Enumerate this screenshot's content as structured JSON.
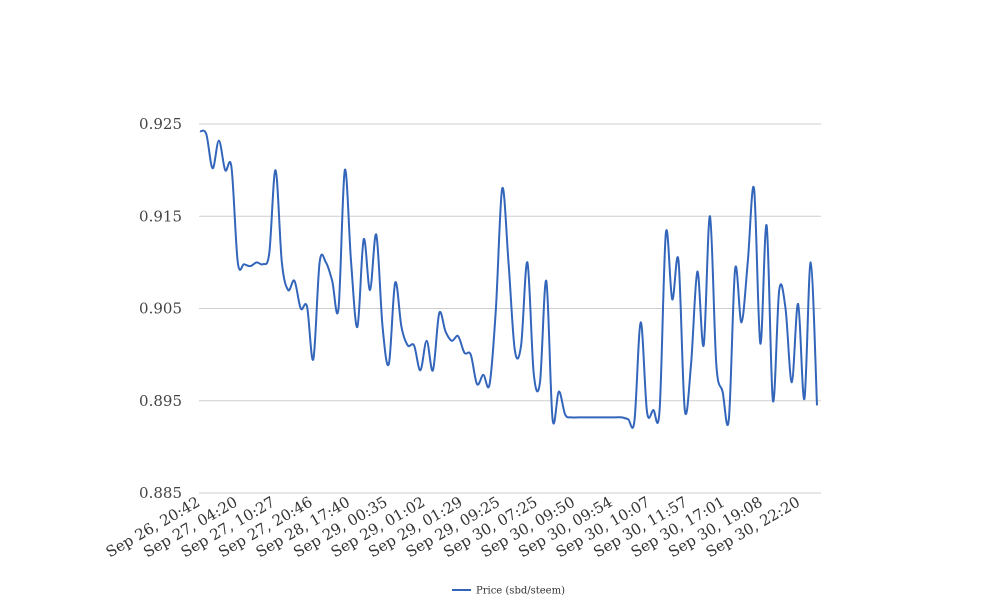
{
  "chart_data": {
    "type": "line",
    "title": "",
    "xlabel": "",
    "ylabel": "",
    "grid": true,
    "legend_position": "bottom",
    "ylim": [
      0.885,
      0.925
    ],
    "yticks": [
      "0.925",
      "0.915",
      "0.905",
      "0.895",
      "0.885"
    ],
    "xtick_labels": [
      "Sep 26, 20:42",
      "Sep 27, 04:20",
      "Sep 27, 10:27",
      "Sep 27, 20:46",
      "Sep 28, 17:40",
      "Sep 29, 00:35",
      "Sep 29, 01:02",
      "Sep 29, 01:29",
      "Sep 29, 09:25",
      "Sep 30, 07:25",
      "Sep 30, 09:50",
      "Sep 30, 09:54",
      "Sep 30, 10:07",
      "Sep 30, 11:57",
      "Sep 30, 17:01",
      "Sep 30, 19:08",
      "Sep 30, 22:20"
    ],
    "series": [
      {
        "name": "Price (sbd/steem)",
        "color": "#3366bb",
        "values": [
          0.9242,
          0.9239,
          0.9202,
          0.9232,
          0.92,
          0.9203,
          0.91,
          0.9098,
          0.9096,
          0.91,
          0.9098,
          0.911,
          0.92,
          0.91,
          0.907,
          0.908,
          0.905,
          0.9052,
          0.8995,
          0.91,
          0.91,
          0.908,
          0.905,
          0.92,
          0.91,
          0.903,
          0.9125,
          0.907,
          0.913,
          0.903,
          0.899,
          0.9078,
          0.903,
          0.901,
          0.901,
          0.8983,
          0.9015,
          0.8983,
          0.9045,
          0.9025,
          0.9015,
          0.902,
          0.9002,
          0.9,
          0.8968,
          0.8978,
          0.8968,
          0.905,
          0.918,
          0.91,
          0.9005,
          0.901,
          0.91,
          0.898,
          0.897,
          0.908,
          0.893,
          0.896,
          0.8935,
          0.8932,
          0.8932,
          0.8932,
          0.8932,
          0.8932,
          0.8932,
          0.8932,
          0.8932,
          0.8932,
          0.893,
          0.8928,
          0.9035,
          0.8938,
          0.894,
          0.894,
          0.9132,
          0.906,
          0.9102,
          0.894,
          0.899,
          0.909,
          0.901,
          0.915,
          0.899,
          0.896,
          0.893,
          0.9093,
          0.9035,
          0.91,
          0.918,
          0.9012,
          0.914,
          0.895,
          0.907,
          0.905,
          0.897,
          0.9055,
          0.8952,
          0.91,
          0.8945
        ]
      }
    ]
  }
}
